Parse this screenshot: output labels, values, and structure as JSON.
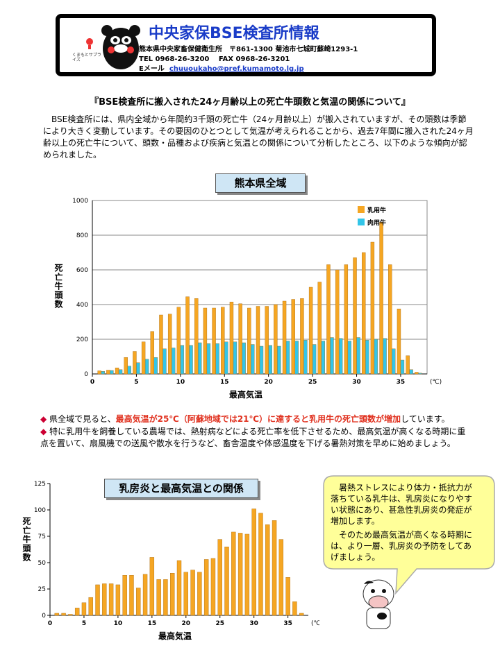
{
  "header": {
    "title": "中央家保BSE検査所情報",
    "logo_text": "くまもとサプライズ",
    "address": "熊本県中央家畜保健衛生所　〒861-1300 菊池市七城町蘇崎1293-1",
    "phone": "TEL 0968-26-3200　 FAX 0968-26-3201",
    "email_label": "Eメール",
    "email": "chuuoukaho@pref.kumamoto.lg.jp"
  },
  "heading": "『BSE検査所に搬入された24ヶ月齢以上の死亡牛頭数と気温の関係について』",
  "intro": "BSE検査所には、県内全域から年間約3千頭の死亡牛（24ヶ月齢以上）が搬入されていますが、その頭数は季節により大きく変動しています。その要因のひとつとして気温が考えられることから、過去7年間に搬入された24ヶ月齢以上の死亡牛について、頭数・品種および疾病と気温との関係について分析したところ、以下のような傾向が認められました。",
  "bullets": [
    [
      "県全域で見ると、",
      "最高気温が25℃（阿蘇地域では21℃）に達すると乳用牛の死亡頭数が増加",
      "しています。"
    ],
    [
      "特に乳用牛を飼養している農場では、熱射病などによる死亡率を低下させるため、最高気温が高くなる時期に重点を置いて、扇風機での送風や散水を行うなど、畜舎温度や体感温度を下げる暑熱対策を早めに始めましょう。"
    ]
  ],
  "bubble": [
    "暑熱ストレスにより体力・抵抗力が落ちている乳牛は、乳房炎になりやすい状態にあり、甚急性乳房炎の発症が増加します。",
    "そのため最高気温が高くなる時期には、より一層、乳房炎の予防をしてあげましょう。"
  ],
  "chart_data": [
    {
      "type": "bar",
      "title": "熊本県全域",
      "y_label": "死亡牛頭数",
      "x_label": "最高気温",
      "x_unit": "(℃)",
      "x": [
        1,
        2,
        3,
        4,
        5,
        6,
        7,
        8,
        9,
        10,
        11,
        12,
        13,
        14,
        15,
        16,
        17,
        18,
        19,
        20,
        21,
        22,
        23,
        24,
        25,
        26,
        27,
        28,
        29,
        30,
        31,
        32,
        33,
        34,
        35,
        36,
        37
      ],
      "series": [
        {
          "name": "乳用牛",
          "color": "#f5a623",
          "values": [
            18,
            22,
            35,
            95,
            130,
            185,
            245,
            340,
            345,
            385,
            445,
            435,
            380,
            380,
            385,
            415,
            405,
            380,
            390,
            390,
            400,
            420,
            430,
            435,
            500,
            530,
            630,
            600,
            630,
            670,
            700,
            760,
            875,
            630,
            375,
            105,
            10
          ]
        },
        {
          "name": "肉用牛",
          "color": "#33c5e8",
          "values": [
            15,
            20,
            25,
            45,
            65,
            85,
            95,
            145,
            150,
            165,
            165,
            180,
            175,
            175,
            185,
            185,
            180,
            170,
            160,
            165,
            160,
            190,
            190,
            195,
            170,
            190,
            210,
            205,
            190,
            210,
            195,
            200,
            205,
            145,
            80,
            25,
            5
          ]
        }
      ],
      "xlim": [
        0,
        38
      ],
      "xticks": [
        0,
        5,
        10,
        15,
        20,
        25,
        30,
        35
      ],
      "ylim": [
        0,
        1000
      ],
      "yticks": [
        0,
        200,
        400,
        600,
        800,
        1000
      ],
      "grid": true,
      "legend": "top-right"
    },
    {
      "type": "bar",
      "title": "乳房炎と最高気温との関係",
      "y_label": "死亡牛頭数",
      "x_label": "最高気温",
      "x_unit": "(℃)",
      "x": [
        1,
        2,
        3,
        4,
        5,
        6,
        7,
        8,
        9,
        10,
        11,
        12,
        13,
        14,
        15,
        16,
        17,
        18,
        19,
        20,
        21,
        22,
        23,
        24,
        25,
        26,
        27,
        28,
        29,
        30,
        31,
        32,
        33,
        34,
        35,
        36,
        37
      ],
      "series": [
        {
          "color": "#f5a623",
          "values": [
            2,
            2,
            1,
            7,
            12,
            17,
            29,
            30,
            30,
            29,
            38,
            38,
            26,
            39,
            55,
            34,
            34,
            40,
            52,
            41,
            43,
            41,
            53,
            54,
            72,
            65,
            79,
            78,
            77,
            101,
            97,
            86,
            90,
            72,
            36,
            13,
            2
          ]
        }
      ],
      "xlim": [
        0,
        38
      ],
      "xticks": [
        0,
        5,
        10,
        15,
        20,
        25,
        30,
        35
      ],
      "ylim": [
        0,
        125
      ],
      "yticks": [
        0,
        25,
        50,
        75,
        100,
        125
      ],
      "grid": false
    }
  ]
}
